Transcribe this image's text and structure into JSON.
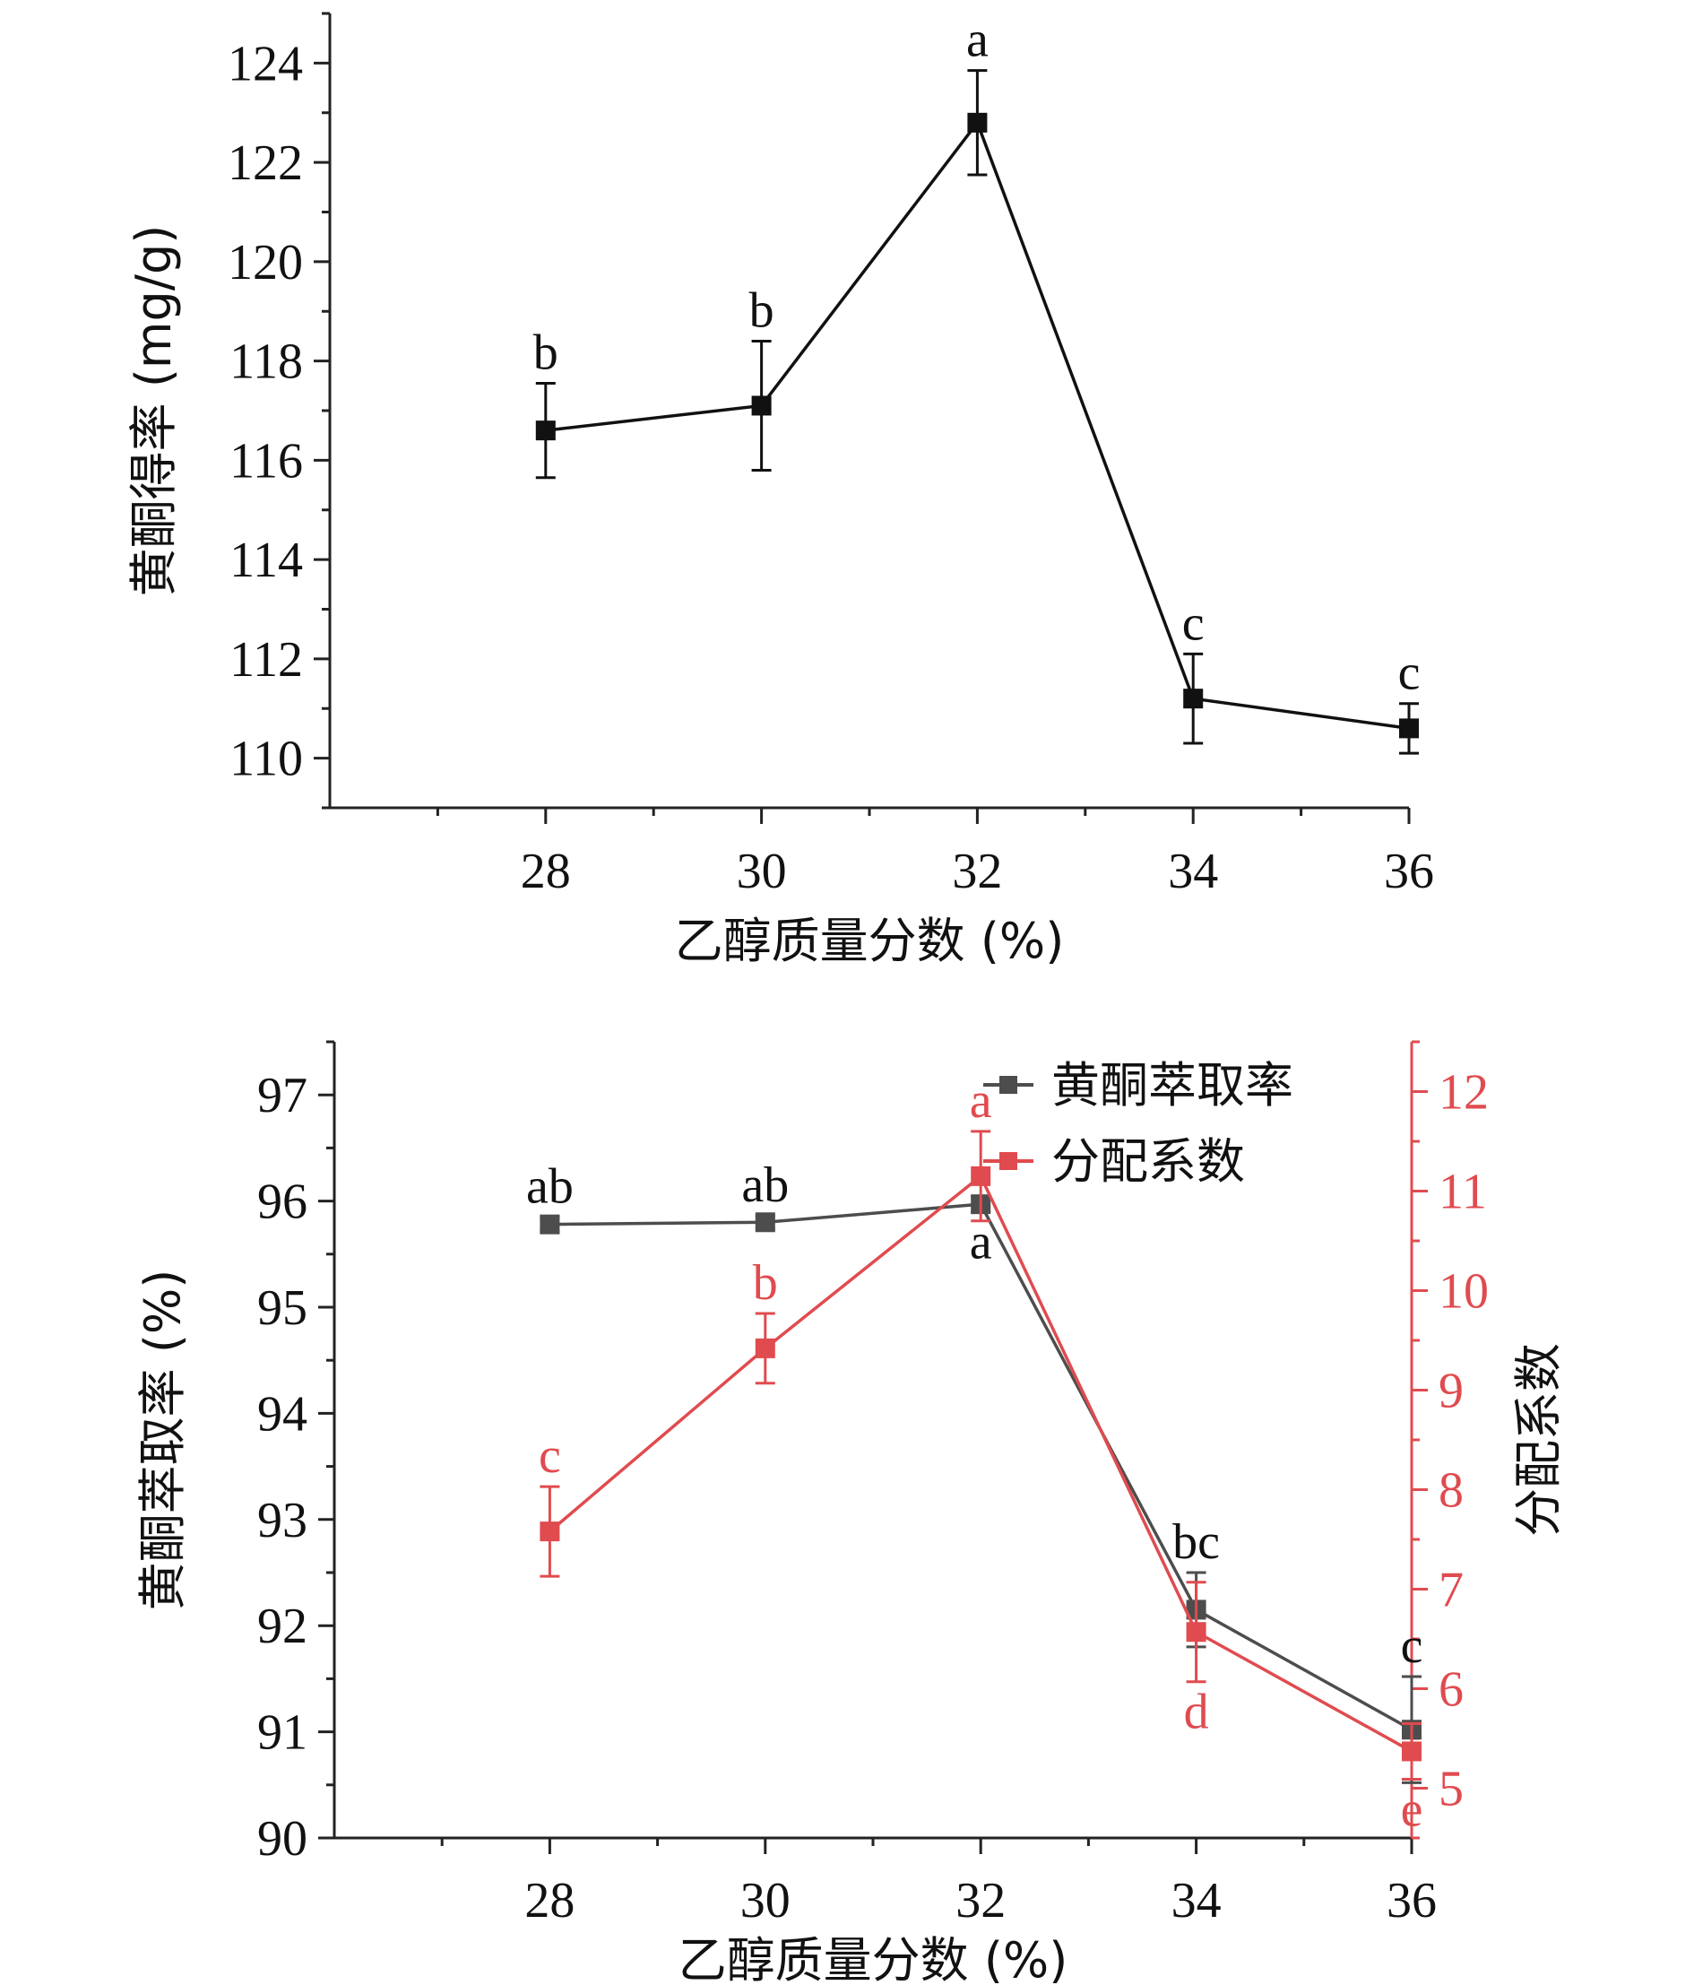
{
  "chart_data": [
    {
      "type": "line",
      "x": [
        28,
        30,
        32,
        34,
        36
      ],
      "xticks": [
        "28",
        "30",
        "32",
        "34",
        "36"
      ],
      "xlim": [
        26,
        36
      ],
      "xlabel": "乙醇质量分数 (%)",
      "ylabel": "黄酮得率 (mg/g)",
      "ylim": [
        109,
        125
      ],
      "yticks": [
        "110",
        "112",
        "114",
        "116",
        "118",
        "120",
        "122",
        "124"
      ],
      "series": [
        {
          "color": "#111111",
          "marker": "square",
          "values": [
            116.6,
            117.1,
            122.8,
            111.2,
            110.6
          ],
          "errors": [
            0.95,
            1.3,
            1.05,
            0.9,
            0.5
          ],
          "labels": [
            "b",
            "b",
            "a",
            "c",
            "c"
          ]
        }
      ],
      "grid": false,
      "legend": false
    },
    {
      "type": "line",
      "x": [
        28,
        30,
        32,
        34,
        36
      ],
      "xticks": [
        "28",
        "30",
        "32",
        "34",
        "36"
      ],
      "xlim": [
        26,
        36
      ],
      "xlabel": "乙醇质量分数 (%)",
      "ylabel": "黄酮萃取率 (%)",
      "ylim": [
        90,
        97.5
      ],
      "yticks": [
        "90",
        "91",
        "92",
        "93",
        "94",
        "95",
        "96",
        "97"
      ],
      "ylabel_right": "分配系数",
      "ylim_right": [
        4.5,
        12.5
      ],
      "yticks_right": [
        "5",
        "6",
        "7",
        "8",
        "9",
        "10",
        "11",
        "12"
      ],
      "series": [
        {
          "name": "黄酮萃取率",
          "axis": "left",
          "color": "#4d4d4d",
          "marker": "square",
          "values": [
            95.78,
            95.8,
            95.97,
            92.15,
            91.02
          ],
          "errors": [
            0.07,
            0.06,
            0.07,
            0.35,
            0.5
          ],
          "labels": [
            "ab",
            "ab",
            "a",
            "bc",
            "c"
          ],
          "label_pos": [
            "above",
            "above",
            "below",
            "above",
            "above"
          ]
        },
        {
          "name": "分配系数",
          "axis": "right",
          "color": "#e04b4f",
          "marker": "square",
          "values": [
            7.58,
            9.42,
            11.15,
            6.57,
            5.37
          ],
          "errors": [
            0.45,
            0.35,
            0.45,
            0.5,
            0.28
          ],
          "labels": [
            "c",
            "b",
            "a",
            "d",
            "e"
          ],
          "label_pos": [
            "above",
            "above",
            "above",
            "below",
            "below"
          ]
        }
      ],
      "grid": false,
      "legend": "top-right"
    }
  ]
}
